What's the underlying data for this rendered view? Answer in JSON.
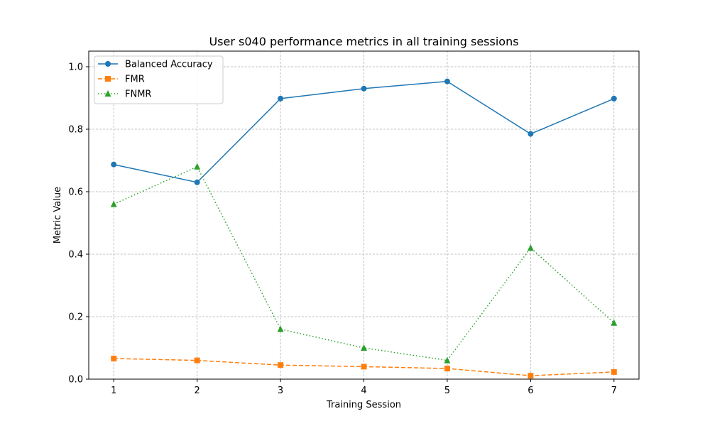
{
  "chart_data": {
    "type": "line",
    "title": "User s040 performance metrics in all training sessions",
    "xlabel": "Training Session",
    "ylabel": "Metric Value",
    "x": [
      1,
      2,
      3,
      4,
      5,
      6,
      7
    ],
    "xticks": [
      "1",
      "2",
      "3",
      "4",
      "5",
      "6",
      "7"
    ],
    "yticks": [
      "0.0",
      "0.2",
      "0.4",
      "0.6",
      "0.8",
      "1.0"
    ],
    "xlim": [
      0.7,
      7.3
    ],
    "ylim": [
      0.0,
      1.05
    ],
    "grid": true,
    "legend_position": "top-left",
    "series": [
      {
        "name": "Balanced Accuracy",
        "color": "#1f77b4",
        "line_style": "solid",
        "marker": "circle",
        "values": [
          0.687,
          0.63,
          0.898,
          0.93,
          0.953,
          0.785,
          0.898
        ]
      },
      {
        "name": "FMR",
        "color": "#ff7f0e",
        "line_style": "dashed",
        "marker": "square",
        "values": [
          0.066,
          0.06,
          0.045,
          0.04,
          0.034,
          0.011,
          0.023
        ]
      },
      {
        "name": "FNMR",
        "color": "#2ca02c",
        "line_style": "dotted",
        "marker": "triangle",
        "values": [
          0.56,
          0.68,
          0.16,
          0.1,
          0.06,
          0.42,
          0.18
        ]
      }
    ]
  }
}
